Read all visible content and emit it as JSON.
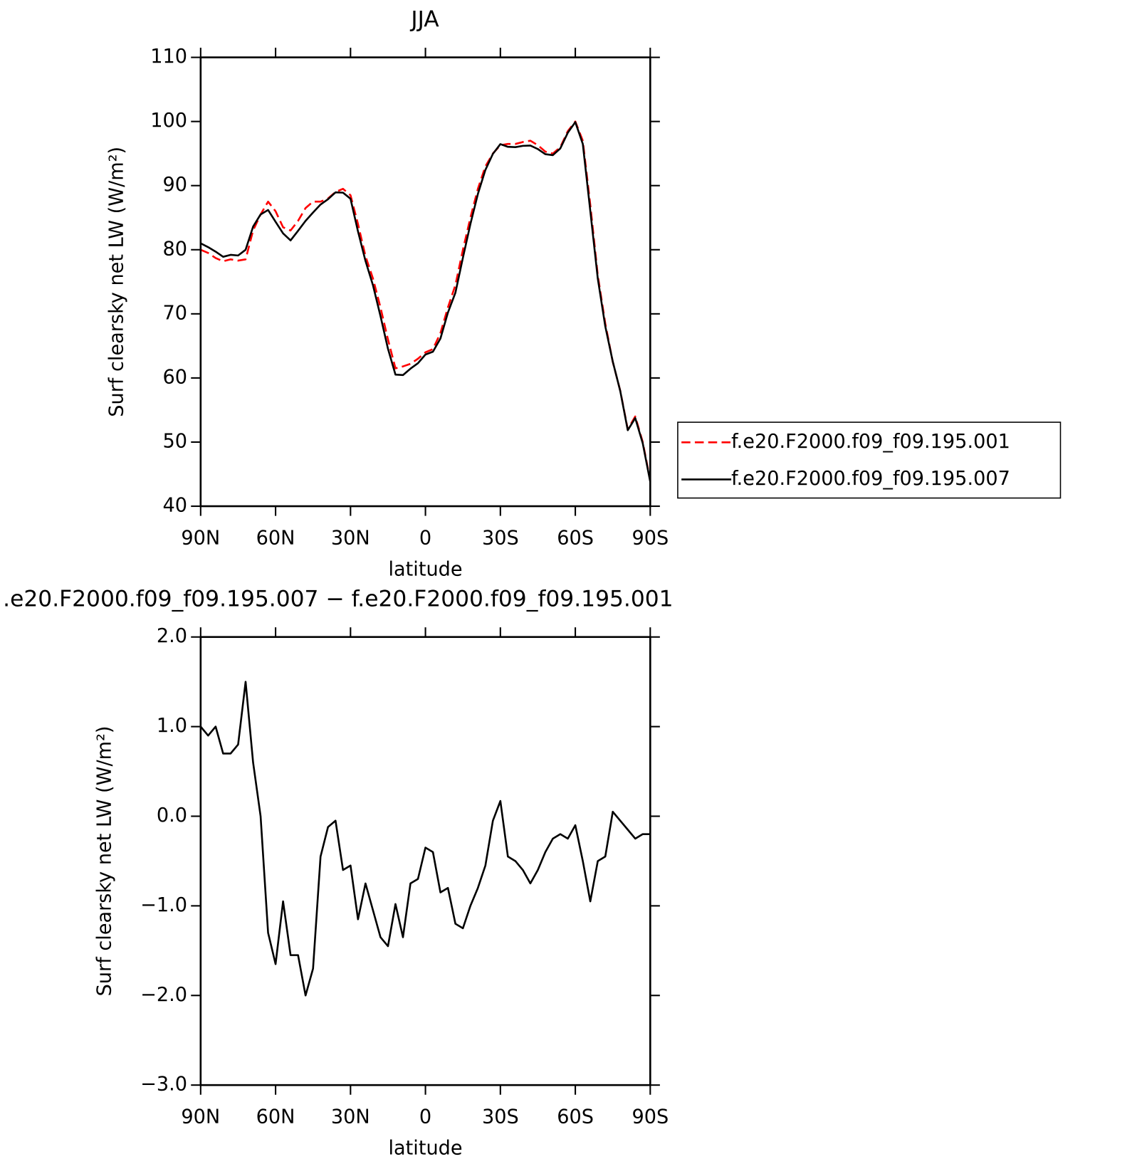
{
  "chart_data": [
    {
      "type": "line",
      "title": "JJA",
      "xlabel": "latitude",
      "ylabel": "Surf clearsky net LW (W/m²)",
      "x": [
        90,
        87,
        84,
        81,
        78,
        75,
        72,
        69,
        66,
        63,
        60,
        57,
        54,
        51,
        48,
        45,
        42,
        39,
        36,
        33,
        30,
        27,
        24,
        21,
        18,
        15,
        12,
        9,
        6,
        3,
        0,
        -3,
        -6,
        -9,
        -12,
        -15,
        -18,
        -21,
        -24,
        -27,
        -30,
        -33,
        -36,
        -39,
        -42,
        -45,
        -48,
        -51,
        -54,
        -57,
        -60,
        -63,
        -66,
        -69,
        -72,
        -75,
        -78,
        -81,
        -84,
        -87,
        -90
      ],
      "series": [
        {
          "name": "f.e20.F2000.f09_f09.195.001",
          "color": "#ff0000",
          "style": "dashed",
          "values": [
            80,
            79.5,
            78.7,
            78.2,
            78.5,
            78.3,
            78.5,
            83,
            85.5,
            87.5,
            86,
            83.5,
            83,
            84.5,
            86.5,
            87.5,
            87.5,
            88,
            89,
            89.5,
            88.5,
            84,
            79,
            75.5,
            71,
            66,
            61.5,
            61.8,
            62.2,
            63,
            64,
            64.5,
            67,
            71,
            74.5,
            80,
            85,
            89.5,
            93,
            95,
            96.3,
            96.5,
            96.5,
            96.8,
            97,
            96.3,
            95.3,
            95,
            96,
            98.5,
            100,
            97,
            87,
            76,
            68.5,
            62.5,
            58,
            52,
            54,
            50,
            44
          ]
        },
        {
          "name": "f.e20.F2000.f09_f09.195.007",
          "color": "#000000",
          "style": "solid",
          "values": [
            81,
            80.4,
            79.7,
            78.9,
            79.2,
            79.1,
            80,
            83.6,
            85.5,
            86.2,
            84.35,
            82.55,
            81.45,
            82.95,
            84.5,
            85.8,
            87.05,
            87.88,
            88.95,
            88.9,
            87.95,
            82.85,
            78.25,
            74.45,
            69.65,
            64.55,
            60.52,
            60.45,
            61.45,
            62.3,
            63.65,
            64.1,
            66.15,
            70.2,
            73.3,
            78.75,
            84,
            88.7,
            92.45,
            94.95,
            96.47,
            96.05,
            96,
            96.2,
            96.25,
            95.7,
            94.9,
            94.75,
            95.8,
            98.25,
            99.9,
            96.5,
            86.05,
            75.5,
            68.05,
            62.55,
            57.95,
            51.85,
            53.75,
            49.8,
            43.8
          ]
        }
      ],
      "xlim": [
        90,
        -90
      ],
      "xticks": [
        {
          "value": 90,
          "label": "90N"
        },
        {
          "value": 60,
          "label": "60N"
        },
        {
          "value": 30,
          "label": "30N"
        },
        0,
        {
          "value": -30,
          "label": "30S"
        },
        {
          "value": -60,
          "label": "60S"
        },
        {
          "value": -90,
          "label": "90S"
        }
      ],
      "ylim": [
        40,
        110
      ],
      "yticks": [
        40,
        50,
        60,
        70,
        80,
        90,
        100,
        110
      ],
      "legend": "right"
    },
    {
      "type": "line",
      "title": ".e20.F2000.f09_f09.195.007 − f.e20.F2000.f09_f09.195.001",
      "xlabel": "latitude",
      "ylabel": "Surf clearsky net LW (W/m²)",
      "x": [
        90,
        87,
        84,
        81,
        78,
        75,
        72,
        69,
        66,
        63,
        60,
        57,
        54,
        51,
        48,
        45,
        42,
        39,
        36,
        33,
        30,
        27,
        24,
        21,
        18,
        15,
        12,
        9,
        6,
        3,
        0,
        -3,
        -6,
        -9,
        -12,
        -15,
        -18,
        -21,
        -24,
        -27,
        -30,
        -33,
        -36,
        -39,
        -42,
        -45,
        -48,
        -51,
        -54,
        -57,
        -60,
        -63,
        -66,
        -69,
        -72,
        -75,
        -78,
        -81,
        -84,
        -87,
        -90
      ],
      "series": [
        {
          "color": "#000000",
          "style": "solid",
          "values": [
            1.0,
            0.9,
            1.0,
            0.7,
            0.7,
            0.8,
            1.5,
            0.6,
            0.0,
            -1.3,
            -1.65,
            -0.95,
            -1.55,
            -1.55,
            -2.0,
            -1.7,
            -0.45,
            -0.12,
            -0.05,
            -0.6,
            -0.55,
            -1.15,
            -0.75,
            -1.05,
            -1.35,
            -1.45,
            -0.98,
            -1.35,
            -0.75,
            -0.7,
            -0.35,
            -0.4,
            -0.85,
            -0.8,
            -1.2,
            -1.25,
            -1.0,
            -0.8,
            -0.55,
            -0.05,
            0.17,
            -0.45,
            -0.5,
            -0.6,
            -0.75,
            -0.6,
            -0.4,
            -0.25,
            -0.2,
            -0.25,
            -0.1,
            -0.5,
            -0.95,
            -0.5,
            -0.45,
            0.05,
            -0.05,
            -0.15,
            -0.25,
            -0.2,
            -0.2
          ]
        }
      ],
      "xlim": [
        90,
        -90
      ],
      "xticks": [
        {
          "value": 90,
          "label": "90N"
        },
        {
          "value": 60,
          "label": "60N"
        },
        {
          "value": 30,
          "label": "30N"
        },
        0,
        {
          "value": -30,
          "label": "30S"
        },
        {
          "value": -60,
          "label": "60S"
        },
        {
          "value": -90,
          "label": "90S"
        }
      ],
      "ylim": [
        -3,
        2
      ],
      "yticks": [
        {
          "value": -3,
          "label": "−3.0"
        },
        {
          "value": -2,
          "label": "−2.0"
        },
        {
          "value": -1,
          "label": "−1.0"
        },
        {
          "value": 0,
          "label": "0.0"
        },
        {
          "value": 1,
          "label": "1.0"
        },
        {
          "value": 2,
          "label": "2.0"
        }
      ]
    }
  ]
}
